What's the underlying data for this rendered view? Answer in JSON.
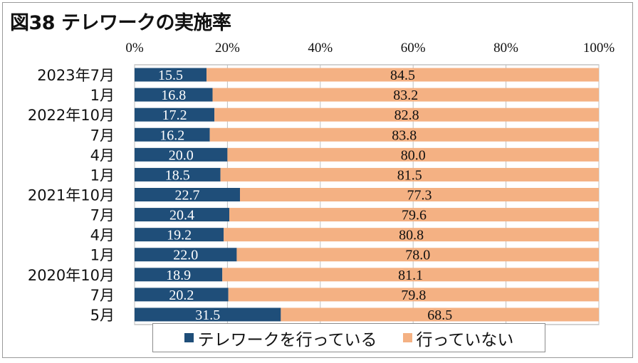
{
  "chart_data": {
    "type": "bar",
    "orientation": "horizontal",
    "stacked": true,
    "title": "図38 テレワークの実施率",
    "categories": [
      "2023年7月",
      "1月",
      "2022年10月",
      "7月",
      "4月",
      "1月",
      "2021年10月",
      "7月",
      "4月",
      "1月",
      "2020年10月",
      "7月",
      "5月"
    ],
    "series": [
      {
        "name": "テレワークを行っている",
        "color": "#1f4e79",
        "values": [
          15.5,
          16.8,
          17.2,
          16.2,
          20.0,
          18.5,
          22.7,
          20.4,
          19.2,
          22.0,
          18.9,
          20.2,
          31.5
        ]
      },
      {
        "name": "行っていない",
        "color": "#f4b183",
        "values": [
          84.5,
          83.2,
          82.8,
          83.8,
          80.0,
          81.5,
          77.3,
          79.6,
          80.8,
          78.0,
          81.1,
          79.8,
          68.5
        ]
      }
    ],
    "value_labels": {
      "s0": [
        "15.5",
        "16.8",
        "17.2",
        "16.2",
        "20.0",
        "18.5",
        "22.7",
        "20.4",
        "19.2",
        "22.0",
        "18.9",
        "20.2",
        "31.5"
      ],
      "s1": [
        "84.5",
        "83.2",
        "82.8",
        "83.8",
        "80.0",
        "81.5",
        "77.3",
        "79.6",
        "80.8",
        "78.0",
        "81.1",
        "79.8",
        "68.5"
      ]
    },
    "xticks": [
      "0%",
      "20%",
      "40%",
      "60%",
      "80%",
      "100%"
    ],
    "xlim": [
      0,
      100
    ],
    "xaxis_position": "top",
    "grid": true,
    "legend_position": "bottom"
  }
}
